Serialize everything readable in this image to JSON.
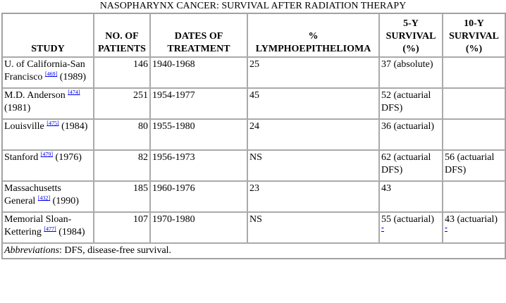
{
  "title": "NASOPHARYNX CANCER: SURVIVAL AFTER RADIATION THERAPY",
  "table": {
    "headers": [
      "STUDY",
      "NO. OF PATIENTS",
      "DATES OF TREATMENT",
      "% LYMPHOEPITHELIOMA",
      "5-Y SURVIVAL (%)",
      "10-Y SURVIVAL (%)"
    ],
    "rows": [
      {
        "study": "U. of California-San Francisco",
        "ref": "[469]",
        "year": "(1989)",
        "patients": 146,
        "dates": "1940-1968",
        "lymph": "25",
        "survival_5y": "37 (absolute)"
      },
      {
        "study": "M.D. Anderson",
        "ref": "[474]",
        "year": "(1981)",
        "patients": 251,
        "dates": "1954-1977",
        "lymph": "45",
        "survival_5y": "52 (actuarial DFS)"
      },
      {
        "study": "Louisville",
        "ref": "[475]",
        "year": "(1984)",
        "patients": 80,
        "dates": "1955-1980",
        "lymph": "24",
        "survival_5y": "36 (actuarial)"
      },
      {
        "study": "Stanford",
        "ref": "[479]",
        "year": "(1976)",
        "patients": 82,
        "dates": "1956-1973",
        "lymph": "NS",
        "survival_5y": "62 (actuarial DFS)",
        "survival_10y": "56 (actuarial DFS)"
      },
      {
        "study": "Massachusetts General",
        "ref": "[432]",
        "year": "(1990)",
        "patients": 185,
        "dates": "1960-1976",
        "lymph": "23",
        "survival_5y": "43"
      },
      {
        "study": "Memorial Sloan-Kettering",
        "ref": "[477]",
        "year": "(1984)",
        "patients": 107,
        "dates": "1970-1980",
        "lymph": "NS",
        "survival_5y": "55 (actuarial)",
        "note_5y": "*",
        "survival_10y": "43 (actuarial)",
        "note_10y": "*"
      }
    ],
    "footnote": {
      "term": "Abbreviations",
      "text": ": DFS, disease-free survival."
    }
  }
}
